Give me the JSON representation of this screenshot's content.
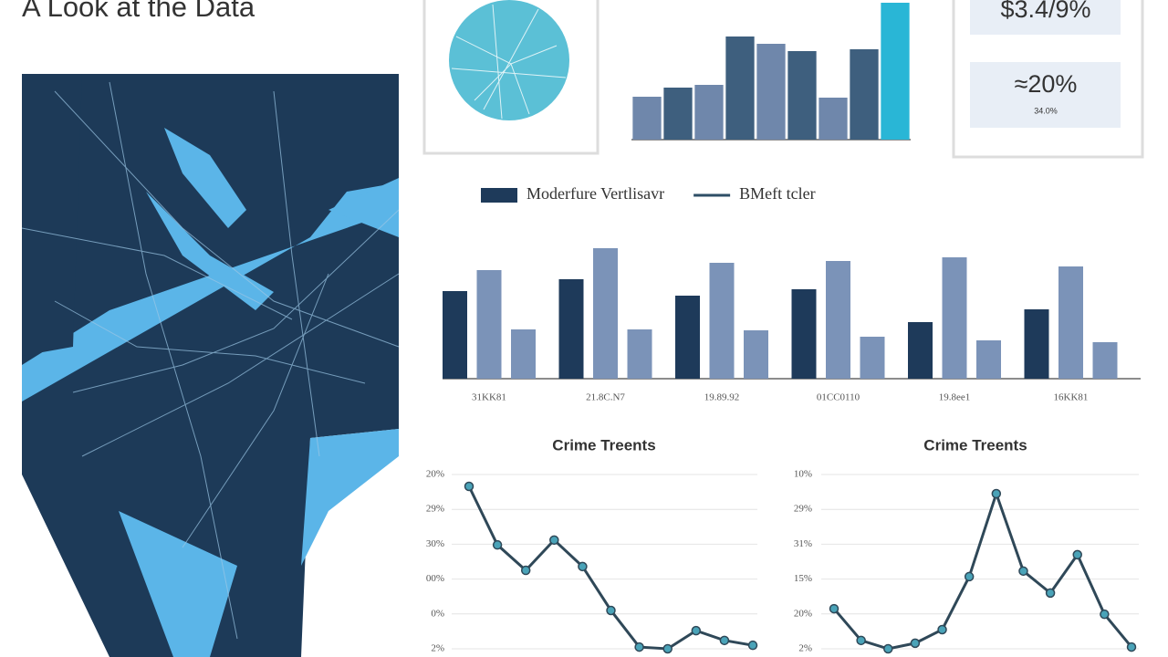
{
  "title": "A Look at the Data",
  "kpis": {
    "primary": "$3.4/9%",
    "secondary": "≈20%",
    "secondary_note": "34.0%"
  },
  "chart_data": [
    {
      "type": "bar",
      "values": [
        47,
        57,
        60,
        113,
        105,
        97,
        46,
        99,
        150
      ],
      "colors": [
        "#6f87ab",
        "#3e5f7e",
        "#6f87ab",
        "#3e5f7e",
        "#6f87ab",
        "#3e5f7e",
        "#6f87ab",
        "#3e5f7e",
        "#29b6d6"
      ],
      "ylim": [
        0,
        150
      ]
    },
    {
      "type": "grouped_bar",
      "categories": [
        "31KK81",
        "21.8C.N7",
        "19.89.92",
        "01CC0110",
        "19.8ee1",
        "16KK81"
      ],
      "series": [
        {
          "name": "Moderfure Vertlisavr",
          "color": "#1e3a5a",
          "values": [
            96,
            109,
            91,
            98,
            62,
            76
          ]
        },
        {
          "name": "BMeft tcler",
          "color": "#7b93b8",
          "values": [
            119,
            143,
            127,
            129,
            133,
            123
          ]
        },
        {
          "color": "#7b93b8",
          "values": [
            54,
            54,
            53,
            46,
            42,
            40
          ]
        }
      ],
      "ylim": [
        0,
        150
      ]
    },
    {
      "type": "line",
      "title": "Crime Treents",
      "categories": [
        null,
        null,
        null,
        null,
        null,
        null,
        null,
        null,
        null,
        null,
        null
      ],
      "values": [
        4.66,
        2.98,
        2.25,
        3.12,
        2.36,
        1.1,
        0.05,
        0,
        0.52,
        0.24,
        0.1
      ],
      "color": "#2f4858",
      "marker_color": "#4aa3b8",
      "grid": true,
      "ylim": [
        0,
        5
      ],
      "yticks": [
        {
          "value": 5,
          "label": "20%"
        },
        {
          "value": 4,
          "label": "29%"
        },
        {
          "value": 3,
          "label": "30%"
        },
        {
          "value": 2,
          "label": "00%"
        },
        {
          "value": 1,
          "label": "0%"
        },
        {
          "value": 0,
          "label": "2%"
        }
      ]
    },
    {
      "type": "line",
      "title": "Crime Treents",
      "categories": [
        null,
        null,
        null,
        null,
        null,
        null,
        null,
        null,
        null,
        null,
        null,
        null
      ],
      "values": [
        1.15,
        0.24,
        0,
        0.16,
        0.55,
        2.07,
        4.45,
        2.23,
        1.6,
        2.7,
        0.99,
        0.05
      ],
      "color": "#2f4858",
      "marker_color": "#4aa3b8",
      "grid": true,
      "ylim": [
        0,
        5
      ],
      "yticks": [
        {
          "value": 5,
          "label": "10%"
        },
        {
          "value": 4,
          "label": "29%"
        },
        {
          "value": 3,
          "label": "31%"
        },
        {
          "value": 2,
          "label": "15%"
        },
        {
          "value": 1,
          "label": "20%"
        },
        {
          "value": 0,
          "label": "2%"
        }
      ]
    }
  ]
}
